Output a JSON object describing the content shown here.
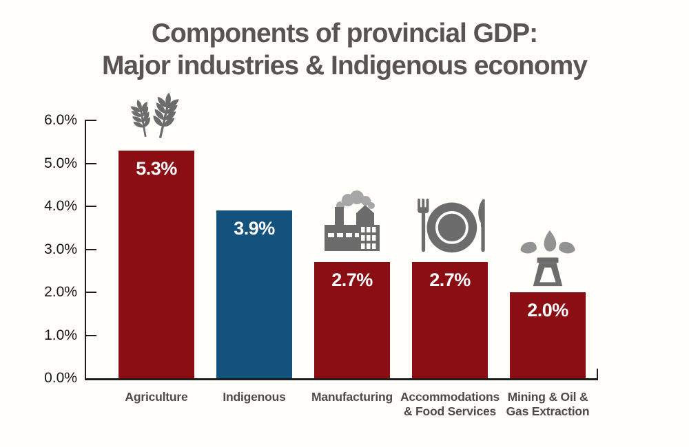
{
  "title": {
    "line1": "Components of provincial GDP:",
    "line2": "Major industries & Indigenous economy"
  },
  "colors": {
    "background": "#FFFEFB",
    "bar_red": "#8B0E14",
    "bar_blue": "#12527C",
    "title_gray": "#5A5353",
    "axis_black": "#1C1C1C",
    "category_label_gray": "#4F4A47",
    "value_label_white": "#FFFFFF",
    "icon_gray": "#6C6C6C",
    "icon_gray_light": "#A6A6A6",
    "droplet_gray": "#929292"
  },
  "chart_data": {
    "type": "bar",
    "title": "Components of provincial GDP: Major industries & Indigenous economy",
    "categories": [
      "Agriculture",
      "Indigenous",
      "Manufacturing",
      "Accommodations & Food Services",
      "Mining & Oil & Gas Extraction"
    ],
    "category_lines": [
      [
        "Agriculture"
      ],
      [
        "Indigenous"
      ],
      [
        "Manufacturing"
      ],
      [
        "Accommodations",
        "& Food Services"
      ],
      [
        "Mining & Oil &",
        "Gas Extraction"
      ]
    ],
    "values": [
      5.3,
      3.9,
      2.7,
      2.7,
      2.0
    ],
    "value_labels": [
      "5.3%",
      "3.9%",
      "2.7%",
      "2.7%",
      "2.0%"
    ],
    "bar_color_keys": [
      "bar_red",
      "bar_blue",
      "bar_red",
      "bar_red",
      "bar_red"
    ],
    "icons": [
      "wheat-icon",
      null,
      "factory-icon",
      "plate-cutlery-icon",
      "oil-gusher-icon"
    ],
    "xlabel": "",
    "ylabel": "",
    "ylim": [
      0,
      6
    ],
    "yticks": [
      "0.0%",
      "1.0%",
      "2.0%",
      "3.0%",
      "4.0%",
      "5.0%",
      "6.0%"
    ],
    "grid": false,
    "legend": null
  }
}
